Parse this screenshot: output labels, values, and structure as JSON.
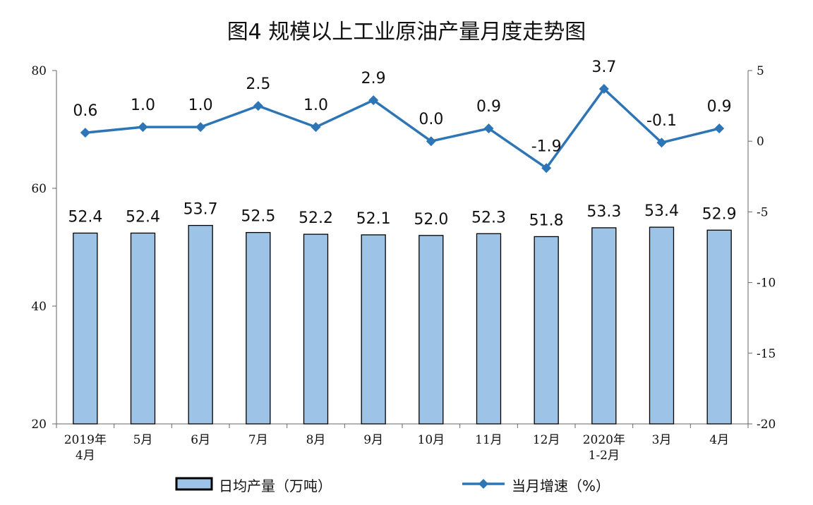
{
  "chart_data": {
    "type": "bar+line",
    "title": "图4  规模以上工业原油产量月度走势图",
    "categories": [
      [
        "2019年",
        "4月"
      ],
      [
        "5月"
      ],
      [
        "6月"
      ],
      [
        "7月"
      ],
      [
        "8月"
      ],
      [
        "9月"
      ],
      [
        "10月"
      ],
      [
        "11月"
      ],
      [
        "12月"
      ],
      [
        "2020年",
        "1-2月"
      ],
      [
        "3月"
      ],
      [
        "4月"
      ]
    ],
    "series": [
      {
        "name": "日均产量（万吨）",
        "type": "bar",
        "axis": "left",
        "values": [
          52.4,
          52.4,
          53.7,
          52.5,
          52.2,
          52.1,
          52.0,
          52.3,
          51.8,
          53.3,
          53.4,
          52.9
        ],
        "labels": [
          "52.4",
          "52.4",
          "53.7",
          "52.5",
          "52.2",
          "52.1",
          "52.0",
          "52.3",
          "51.8",
          "53.3",
          "53.4",
          "52.9"
        ],
        "color": "#9DC3E6",
        "border": "#000000"
      },
      {
        "name": "当月增速（%）",
        "type": "line",
        "axis": "right",
        "values": [
          0.6,
          1.0,
          1.0,
          2.5,
          1.0,
          2.9,
          0.0,
          0.9,
          -1.9,
          3.7,
          -0.1,
          0.9
        ],
        "labels": [
          "0.6",
          "1.0",
          "1.0",
          "2.5",
          "1.0",
          "2.9",
          "0.0",
          "0.9",
          "-1.9",
          "3.7",
          "-0.1",
          "0.9"
        ],
        "color": "#2E75B6"
      }
    ],
    "y_left": {
      "min": 20,
      "max": 80,
      "ticks": [
        20,
        40,
        60,
        80
      ]
    },
    "y_right": {
      "min": -20,
      "max": 5,
      "ticks": [
        -20,
        -15,
        -10,
        -5,
        0,
        5
      ]
    },
    "grid": false,
    "legend": "bottom"
  }
}
